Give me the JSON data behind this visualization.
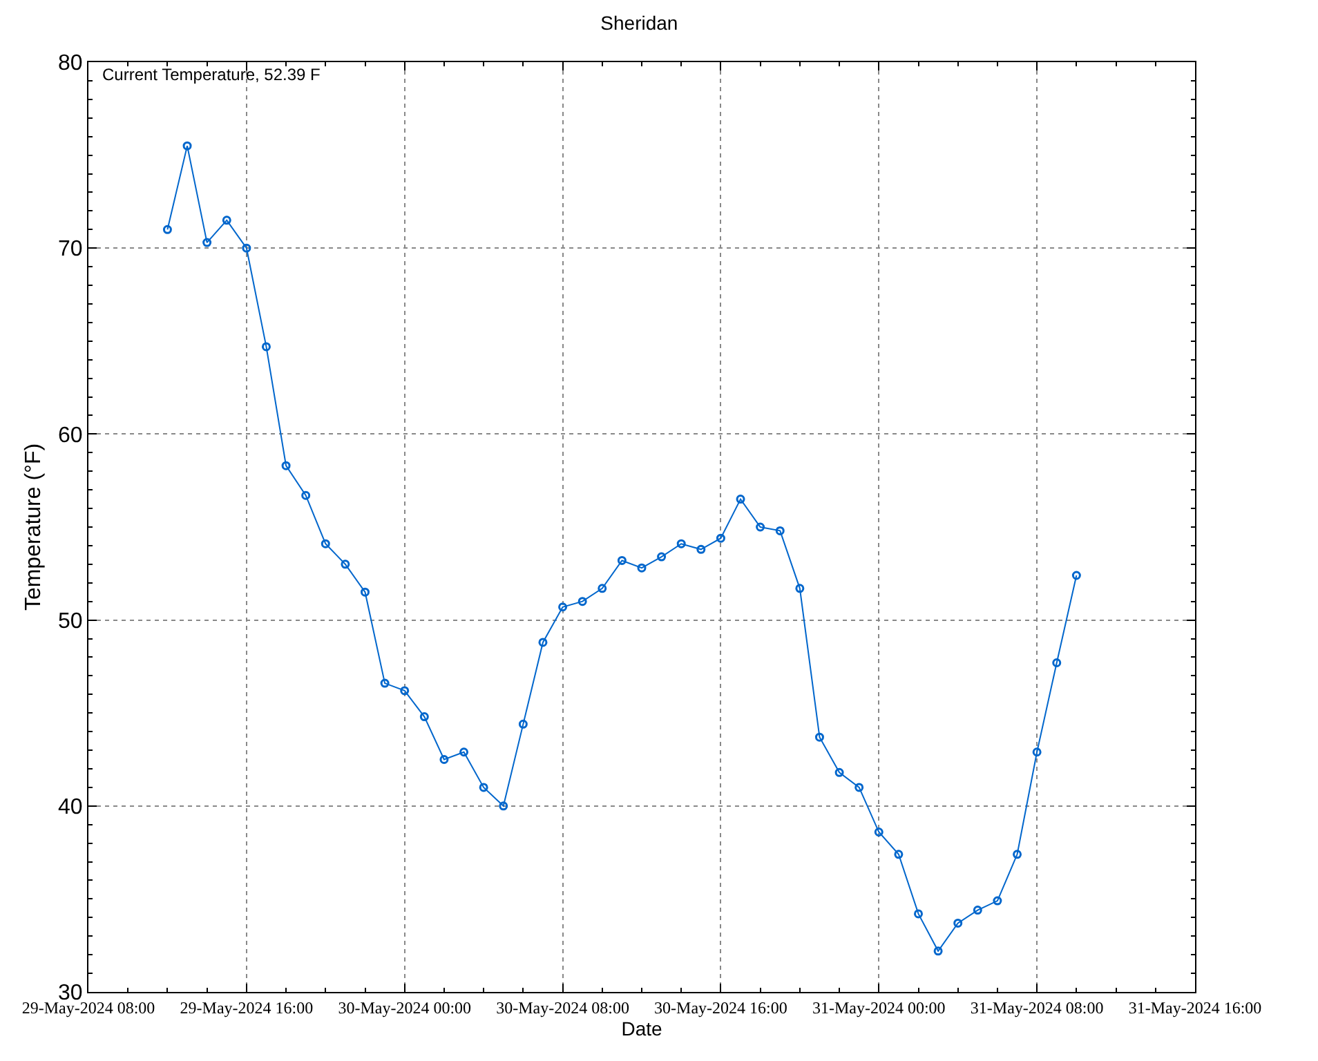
{
  "chart_data": {
    "type": "line",
    "title": "Sheridan",
    "xlabel": "Date",
    "ylabel": "Temperature (°F)",
    "annotations": [
      "Current Temperature, 52.39 F"
    ],
    "x": [
      "2024-05-29T12:00",
      "2024-05-29T13:00",
      "2024-05-29T14:00",
      "2024-05-29T15:00",
      "2024-05-29T16:00",
      "2024-05-29T17:00",
      "2024-05-29T18:00",
      "2024-05-29T19:00",
      "2024-05-29T20:00",
      "2024-05-29T21:00",
      "2024-05-29T22:00",
      "2024-05-29T23:00",
      "2024-05-30T00:00",
      "2024-05-30T01:00",
      "2024-05-30T02:00",
      "2024-05-30T03:00",
      "2024-05-30T04:00",
      "2024-05-30T05:00",
      "2024-05-30T06:00",
      "2024-05-30T07:00",
      "2024-05-30T08:00",
      "2024-05-30T09:00",
      "2024-05-30T10:00",
      "2024-05-30T11:00",
      "2024-05-30T12:00",
      "2024-05-30T13:00",
      "2024-05-30T14:00",
      "2024-05-30T15:00",
      "2024-05-30T16:00",
      "2024-05-30T17:00",
      "2024-05-30T18:00",
      "2024-05-30T19:00",
      "2024-05-30T20:00",
      "2024-05-30T21:00",
      "2024-05-30T22:00",
      "2024-05-30T23:00",
      "2024-05-31T00:00",
      "2024-05-31T01:00",
      "2024-05-31T02:00",
      "2024-05-31T03:00",
      "2024-05-31T04:00",
      "2024-05-31T05:00",
      "2024-05-31T06:00",
      "2024-05-31T07:00",
      "2024-05-31T08:00",
      "2024-05-31T09:00",
      "2024-05-31T10:00"
    ],
    "series": [
      {
        "color": "#0066cc",
        "values": [
          71.0,
          75.5,
          70.3,
          71.5,
          70.0,
          64.7,
          58.3,
          56.7,
          54.1,
          53.0,
          51.5,
          46.6,
          46.2,
          44.8,
          42.5,
          42.9,
          41.0,
          40.0,
          44.4,
          48.8,
          50.7,
          51.0,
          51.7,
          53.2,
          52.8,
          53.4,
          54.1,
          53.8,
          54.4,
          56.5,
          55.0,
          54.8,
          51.7,
          43.7,
          41.8,
          41.0,
          38.6,
          37.4,
          34.2,
          32.2,
          33.7,
          34.4,
          34.9,
          37.4,
          42.9,
          47.7,
          52.4
        ]
      }
    ],
    "xlim": [
      "2024-05-29T08:00",
      "2024-05-31T16:00"
    ],
    "xticks": [
      {
        "value": "2024-05-29T08:00",
        "label": "29-May-2024 08:00"
      },
      {
        "value": "2024-05-29T16:00",
        "label": "29-May-2024 16:00"
      },
      {
        "value": "2024-05-30T00:00",
        "label": "30-May-2024 00:00"
      },
      {
        "value": "2024-05-30T08:00",
        "label": "30-May-2024 08:00"
      },
      {
        "value": "2024-05-30T16:00",
        "label": "30-May-2024 16:00"
      },
      {
        "value": "2024-05-31T00:00",
        "label": "31-May-2024 00:00"
      },
      {
        "value": "2024-05-31T08:00",
        "label": "31-May-2024 08:00"
      },
      {
        "value": "2024-05-31T16:00",
        "label": "31-May-2024 16:00"
      }
    ],
    "ylim": [
      30,
      80
    ],
    "yticks": [
      30,
      40,
      50,
      60,
      70,
      80
    ],
    "grid": true,
    "marker": "circle",
    "line_style": "solid"
  }
}
